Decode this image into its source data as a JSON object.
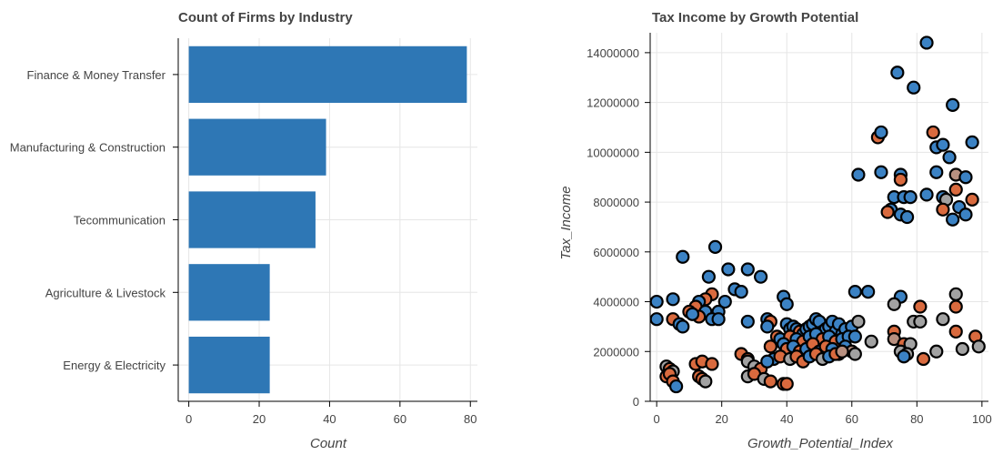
{
  "colors": {
    "bar": "#2e77b5",
    "blue": "#3b82c4",
    "orange": "#d96a3e",
    "gray": "#a2a2a2",
    "light_orange": "#e0956f",
    "gray_orange": "#b89080"
  },
  "chart_data": [
    {
      "type": "bar",
      "orientation": "horizontal",
      "title": "Count of Firms by Industry",
      "xlabel": "Count",
      "ylabel": "",
      "categories": [
        "Finance & Money Transfer",
        "Manufacturing & Construction",
        "Tecommunication",
        "Agriculture & Livestock",
        "Energy & Electricity"
      ],
      "values": [
        79,
        39,
        36,
        23,
        23
      ],
      "xlim": [
        -3,
        82
      ],
      "xticks": [
        0,
        20,
        40,
        60,
        80
      ],
      "grid": true
    },
    {
      "type": "scatter",
      "title": "Tax Income by Growth Potential",
      "xlabel": "Growth_Potential_Index",
      "ylabel": "Tax_Income",
      "xlim": [
        -2,
        102
      ],
      "ylim": [
        0,
        14800000
      ],
      "xticks": [
        0,
        20,
        40,
        60,
        80,
        100
      ],
      "yticks": [
        0,
        2000000,
        4000000,
        6000000,
        8000000,
        10000000,
        12000000,
        14000000
      ],
      "grid": true,
      "points": [
        {
          "x": 83,
          "y": 14400000,
          "c": "blue"
        },
        {
          "x": 74,
          "y": 13200000,
          "c": "blue"
        },
        {
          "x": 79,
          "y": 12600000,
          "c": "blue"
        },
        {
          "x": 91,
          "y": 11900000,
          "c": "blue"
        },
        {
          "x": 68,
          "y": 10600000,
          "c": "orange"
        },
        {
          "x": 69,
          "y": 10800000,
          "c": "blue"
        },
        {
          "x": 85,
          "y": 10800000,
          "c": "orange"
        },
        {
          "x": 86,
          "y": 10200000,
          "c": "blue"
        },
        {
          "x": 88,
          "y": 10300000,
          "c": "blue"
        },
        {
          "x": 97,
          "y": 10400000,
          "c": "blue"
        },
        {
          "x": 90,
          "y": 9800000,
          "c": "blue"
        },
        {
          "x": 62,
          "y": 9100000,
          "c": "blue"
        },
        {
          "x": 69,
          "y": 9200000,
          "c": "blue"
        },
        {
          "x": 75,
          "y": 9100000,
          "c": "blue"
        },
        {
          "x": 75,
          "y": 8900000,
          "c": "orange"
        },
        {
          "x": 86,
          "y": 9200000,
          "c": "blue"
        },
        {
          "x": 92,
          "y": 9100000,
          "c": "gray_orange"
        },
        {
          "x": 95,
          "y": 9000000,
          "c": "blue"
        },
        {
          "x": 83,
          "y": 8300000,
          "c": "blue"
        },
        {
          "x": 73,
          "y": 8200000,
          "c": "blue"
        },
        {
          "x": 76,
          "y": 8200000,
          "c": "blue"
        },
        {
          "x": 78,
          "y": 8200000,
          "c": "blue"
        },
        {
          "x": 88,
          "y": 8200000,
          "c": "blue"
        },
        {
          "x": 89,
          "y": 8100000,
          "c": "gray"
        },
        {
          "x": 92,
          "y": 8500000,
          "c": "orange"
        },
        {
          "x": 97,
          "y": 8100000,
          "c": "orange"
        },
        {
          "x": 93,
          "y": 7800000,
          "c": "blue"
        },
        {
          "x": 72,
          "y": 7700000,
          "c": "blue"
        },
        {
          "x": 71,
          "y": 7600000,
          "c": "orange"
        },
        {
          "x": 75,
          "y": 7500000,
          "c": "blue"
        },
        {
          "x": 77,
          "y": 7400000,
          "c": "blue"
        },
        {
          "x": 88,
          "y": 7700000,
          "c": "orange"
        },
        {
          "x": 91,
          "y": 7300000,
          "c": "blue"
        },
        {
          "x": 95,
          "y": 7500000,
          "c": "blue"
        },
        {
          "x": 18,
          "y": 6200000,
          "c": "blue"
        },
        {
          "x": 8,
          "y": 5800000,
          "c": "blue"
        },
        {
          "x": 22,
          "y": 5300000,
          "c": "blue"
        },
        {
          "x": 28,
          "y": 5300000,
          "c": "blue"
        },
        {
          "x": 16,
          "y": 5000000,
          "c": "blue"
        },
        {
          "x": 32,
          "y": 5000000,
          "c": "blue"
        },
        {
          "x": 24,
          "y": 4500000,
          "c": "blue"
        },
        {
          "x": 26,
          "y": 4400000,
          "c": "blue"
        },
        {
          "x": 61,
          "y": 4400000,
          "c": "blue"
        },
        {
          "x": 65,
          "y": 4400000,
          "c": "blue"
        },
        {
          "x": 17,
          "y": 4300000,
          "c": "orange"
        },
        {
          "x": 15,
          "y": 4100000,
          "c": "orange"
        },
        {
          "x": 39,
          "y": 4200000,
          "c": "blue"
        },
        {
          "x": 75,
          "y": 4200000,
          "c": "blue"
        },
        {
          "x": 92,
          "y": 4300000,
          "c": "gray"
        },
        {
          "x": 0,
          "y": 4000000,
          "c": "blue"
        },
        {
          "x": 5,
          "y": 4100000,
          "c": "blue"
        },
        {
          "x": 13,
          "y": 4000000,
          "c": "blue"
        },
        {
          "x": 21,
          "y": 4000000,
          "c": "blue"
        },
        {
          "x": 12,
          "y": 3800000,
          "c": "orange"
        },
        {
          "x": 40,
          "y": 3900000,
          "c": "blue"
        },
        {
          "x": 73,
          "y": 3900000,
          "c": "gray"
        },
        {
          "x": 81,
          "y": 3800000,
          "c": "orange"
        },
        {
          "x": 92,
          "y": 3800000,
          "c": "orange"
        },
        {
          "x": 10,
          "y": 3600000,
          "c": "orange"
        },
        {
          "x": 15,
          "y": 3600000,
          "c": "blue"
        },
        {
          "x": 19,
          "y": 3600000,
          "c": "blue"
        },
        {
          "x": 13,
          "y": 3400000,
          "c": "orange"
        },
        {
          "x": 11,
          "y": 3500000,
          "c": "blue"
        },
        {
          "x": 0,
          "y": 3300000,
          "c": "blue"
        },
        {
          "x": 5,
          "y": 3300000,
          "c": "orange"
        },
        {
          "x": 7,
          "y": 3100000,
          "c": "blue"
        },
        {
          "x": 8,
          "y": 3000000,
          "c": "blue"
        },
        {
          "x": 17,
          "y": 3300000,
          "c": "blue"
        },
        {
          "x": 19,
          "y": 3300000,
          "c": "blue"
        },
        {
          "x": 28,
          "y": 3200000,
          "c": "blue"
        },
        {
          "x": 34,
          "y": 3300000,
          "c": "blue"
        },
        {
          "x": 35,
          "y": 3200000,
          "c": "orange"
        },
        {
          "x": 34,
          "y": 3000000,
          "c": "blue"
        },
        {
          "x": 40,
          "y": 3100000,
          "c": "blue"
        },
        {
          "x": 41,
          "y": 2900000,
          "c": "blue"
        },
        {
          "x": 42,
          "y": 3000000,
          "c": "blue"
        },
        {
          "x": 43,
          "y": 2900000,
          "c": "blue"
        },
        {
          "x": 44,
          "y": 2800000,
          "c": "orange"
        },
        {
          "x": 45,
          "y": 2700000,
          "c": "blue"
        },
        {
          "x": 46,
          "y": 2900000,
          "c": "blue"
        },
        {
          "x": 47,
          "y": 3000000,
          "c": "blue"
        },
        {
          "x": 48,
          "y": 3100000,
          "c": "blue"
        },
        {
          "x": 49,
          "y": 3300000,
          "c": "blue"
        },
        {
          "x": 50,
          "y": 3200000,
          "c": "blue"
        },
        {
          "x": 51,
          "y": 2800000,
          "c": "orange"
        },
        {
          "x": 52,
          "y": 2900000,
          "c": "blue"
        },
        {
          "x": 53,
          "y": 3000000,
          "c": "blue"
        },
        {
          "x": 54,
          "y": 3200000,
          "c": "blue"
        },
        {
          "x": 55,
          "y": 2800000,
          "c": "blue"
        },
        {
          "x": 56,
          "y": 3100000,
          "c": "blue"
        },
        {
          "x": 57,
          "y": 2700000,
          "c": "blue"
        },
        {
          "x": 58,
          "y": 2900000,
          "c": "blue"
        },
        {
          "x": 60,
          "y": 3000000,
          "c": "blue"
        },
        {
          "x": 62,
          "y": 3200000,
          "c": "gray"
        },
        {
          "x": 79,
          "y": 3200000,
          "c": "gray"
        },
        {
          "x": 81,
          "y": 3200000,
          "c": "gray"
        },
        {
          "x": 88,
          "y": 3300000,
          "c": "gray"
        },
        {
          "x": 73,
          "y": 2800000,
          "c": "orange"
        },
        {
          "x": 92,
          "y": 2800000,
          "c": "orange"
        },
        {
          "x": 37,
          "y": 2600000,
          "c": "orange"
        },
        {
          "x": 38,
          "y": 2500000,
          "c": "blue"
        },
        {
          "x": 41,
          "y": 2600000,
          "c": "orange"
        },
        {
          "x": 43,
          "y": 2500000,
          "c": "blue"
        },
        {
          "x": 45,
          "y": 2400000,
          "c": "orange"
        },
        {
          "x": 47,
          "y": 2600000,
          "c": "blue"
        },
        {
          "x": 49,
          "y": 2700000,
          "c": "blue"
        },
        {
          "x": 51,
          "y": 2500000,
          "c": "orange"
        },
        {
          "x": 53,
          "y": 2600000,
          "c": "blue"
        },
        {
          "x": 55,
          "y": 2400000,
          "c": "orange"
        },
        {
          "x": 57,
          "y": 2500000,
          "c": "blue"
        },
        {
          "x": 59,
          "y": 2600000,
          "c": "blue"
        },
        {
          "x": 61,
          "y": 2600000,
          "c": "blue"
        },
        {
          "x": 66,
          "y": 2400000,
          "c": "gray"
        },
        {
          "x": 73,
          "y": 2500000,
          "c": "gray_orange"
        },
        {
          "x": 76,
          "y": 2300000,
          "c": "orange"
        },
        {
          "x": 78,
          "y": 2300000,
          "c": "gray"
        },
        {
          "x": 98,
          "y": 2600000,
          "c": "orange"
        },
        {
          "x": 35,
          "y": 2200000,
          "c": "orange"
        },
        {
          "x": 39,
          "y": 2300000,
          "c": "blue"
        },
        {
          "x": 40,
          "y": 2100000,
          "c": "orange"
        },
        {
          "x": 42,
          "y": 2200000,
          "c": "blue"
        },
        {
          "x": 44,
          "y": 2000000,
          "c": "orange"
        },
        {
          "x": 46,
          "y": 2100000,
          "c": "blue"
        },
        {
          "x": 48,
          "y": 2300000,
          "c": "orange"
        },
        {
          "x": 50,
          "y": 2000000,
          "c": "blue"
        },
        {
          "x": 52,
          "y": 2200000,
          "c": "orange"
        },
        {
          "x": 54,
          "y": 2100000,
          "c": "blue"
        },
        {
          "x": 56,
          "y": 1900000,
          "c": "orange"
        },
        {
          "x": 58,
          "y": 2200000,
          "c": "blue"
        },
        {
          "x": 60,
          "y": 2000000,
          "c": "gray_orange"
        },
        {
          "x": 75,
          "y": 2000000,
          "c": "gray"
        },
        {
          "x": 77,
          "y": 1900000,
          "c": "gray"
        },
        {
          "x": 86,
          "y": 2000000,
          "c": "gray"
        },
        {
          "x": 94,
          "y": 2100000,
          "c": "gray"
        },
        {
          "x": 99,
          "y": 2200000,
          "c": "gray"
        },
        {
          "x": 26,
          "y": 1900000,
          "c": "orange"
        },
        {
          "x": 28,
          "y": 1700000,
          "c": "orange"
        },
        {
          "x": 36,
          "y": 1700000,
          "c": "blue"
        },
        {
          "x": 38,
          "y": 1800000,
          "c": "orange"
        },
        {
          "x": 41,
          "y": 1700000,
          "c": "gray"
        },
        {
          "x": 43,
          "y": 1800000,
          "c": "orange"
        },
        {
          "x": 45,
          "y": 1600000,
          "c": "orange"
        },
        {
          "x": 47,
          "y": 1800000,
          "c": "blue"
        },
        {
          "x": 49,
          "y": 1900000,
          "c": "orange"
        },
        {
          "x": 51,
          "y": 1700000,
          "c": "gray"
        },
        {
          "x": 53,
          "y": 1800000,
          "c": "blue"
        },
        {
          "x": 55,
          "y": 1900000,
          "c": "orange"
        },
        {
          "x": 57,
          "y": 2000000,
          "c": "gray_orange"
        },
        {
          "x": 61,
          "y": 1900000,
          "c": "gray"
        },
        {
          "x": 76,
          "y": 1800000,
          "c": "blue"
        },
        {
          "x": 82,
          "y": 1700000,
          "c": "orange"
        },
        {
          "x": 12,
          "y": 1500000,
          "c": "orange"
        },
        {
          "x": 14,
          "y": 1600000,
          "c": "orange"
        },
        {
          "x": 17,
          "y": 1500000,
          "c": "orange"
        },
        {
          "x": 3,
          "y": 1400000,
          "c": "gray"
        },
        {
          "x": 4,
          "y": 1300000,
          "c": "orange"
        },
        {
          "x": 5,
          "y": 1200000,
          "c": "gray"
        },
        {
          "x": 28,
          "y": 1600000,
          "c": "gray"
        },
        {
          "x": 30,
          "y": 1400000,
          "c": "gray"
        },
        {
          "x": 32,
          "y": 1300000,
          "c": "orange"
        },
        {
          "x": 34,
          "y": 1600000,
          "c": "blue"
        },
        {
          "x": 3,
          "y": 1000000,
          "c": "orange"
        },
        {
          "x": 4,
          "y": 1100000,
          "c": "orange"
        },
        {
          "x": 13,
          "y": 1000000,
          "c": "orange"
        },
        {
          "x": 14,
          "y": 900000,
          "c": "orange"
        },
        {
          "x": 15,
          "y": 800000,
          "c": "gray"
        },
        {
          "x": 28,
          "y": 1000000,
          "c": "gray"
        },
        {
          "x": 30,
          "y": 1100000,
          "c": "orange"
        },
        {
          "x": 33,
          "y": 900000,
          "c": "gray"
        },
        {
          "x": 35,
          "y": 800000,
          "c": "orange"
        },
        {
          "x": 5,
          "y": 800000,
          "c": "orange"
        },
        {
          "x": 6,
          "y": 600000,
          "c": "blue"
        },
        {
          "x": 39,
          "y": 700000,
          "c": "orange"
        },
        {
          "x": 40,
          "y": 700000,
          "c": "orange"
        }
      ]
    }
  ]
}
